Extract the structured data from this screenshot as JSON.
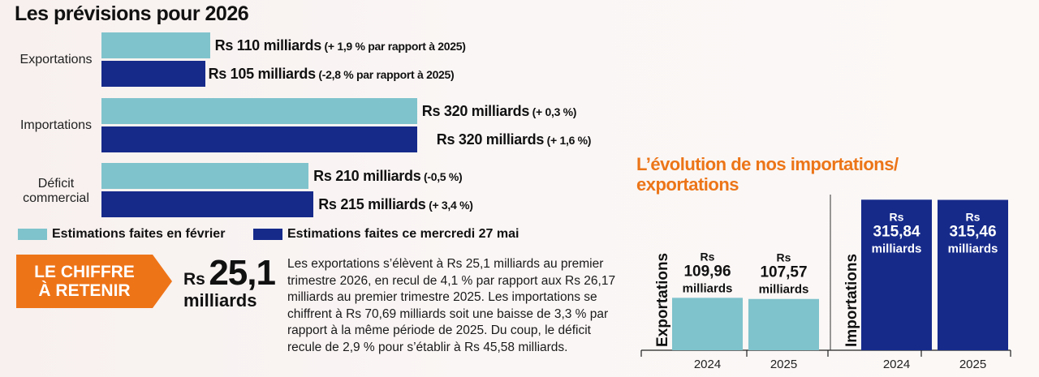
{
  "title": "Les prévisions pour 2026",
  "chart_data": [
    {
      "type": "bar",
      "orientation": "horizontal",
      "title": "Les prévisions pour 2026",
      "categories": [
        "Exportations",
        "Importations",
        "Déficit commercial"
      ],
      "series": [
        {
          "name": "Estimations faites en février",
          "color": "#7fc3cc",
          "values": [
            110,
            320,
            210
          ],
          "labels": [
            "Rs 110 milliards",
            "Rs 320 milliards",
            "Rs 210 milliards"
          ],
          "changes": [
            "(+ 1,9 % par rapport à 2025)",
            "(+ 0,3 %)",
            "(-0,5 %)"
          ]
        },
        {
          "name": "Estimations faites ce mercredi 27 mai",
          "color": "#162a8a",
          "values": [
            105,
            320,
            215
          ],
          "labels": [
            "Rs 105 milliards",
            "Rs 320 milliards",
            "Rs 215 milliards"
          ],
          "changes": [
            "(-2,8 % par rapport à 2025)",
            "(+ 1,6 %)",
            "(+ 3,4 %)"
          ]
        }
      ],
      "xlim": [
        0,
        340
      ],
      "grid": false,
      "legend": "bottom"
    },
    {
      "type": "bar",
      "title": "L’évolution de nos importations/ exportations",
      "groups": [
        {
          "name": "Exportations",
          "color": "#7fc3cc",
          "categories": [
            "2024",
            "2025"
          ],
          "values": [
            109.96,
            107.57
          ],
          "labels": [
            [
              "Rs",
              "109,96",
              "milliards"
            ],
            [
              "Rs",
              "107,57",
              "milliards"
            ]
          ]
        },
        {
          "name": "Importations",
          "color": "#162a8a",
          "categories": [
            "2024",
            "2025"
          ],
          "values": [
            315.84,
            315.46
          ],
          "labels": [
            [
              "Rs",
              "315,84",
              "milliards"
            ],
            [
              "Rs",
              "315,46",
              "milliards"
            ]
          ]
        }
      ],
      "ylim": [
        0,
        340
      ],
      "grid": false
    }
  ],
  "legend": {
    "feb": "Estimations faites en février",
    "may": "Estimations faites ce mercredi 27 mai"
  },
  "retenir": {
    "line1": "LE CHIFFRE",
    "line2": "À RETENIR"
  },
  "bignum": {
    "rs": "Rs",
    "num": "25,1",
    "unit": "milliards"
  },
  "paragraph": "Les exportations s’élèvent à Rs 25,1 milliards au premier trimestre 2026, en recul de 4,1 % par rapport aux Rs 26,17 milliards au premier trimestre 2025. Les importations se chiffrent à Rs 70,69 milliards soit une baisse de 3,3 % par rapport à la même période de 2025. Du coup, le déficit recule de 2,9 % pour s’établir à Rs 45,58 milliards.",
  "right_title": {
    "line1": "L’évolution de nos importations/",
    "line2": "exportations"
  }
}
